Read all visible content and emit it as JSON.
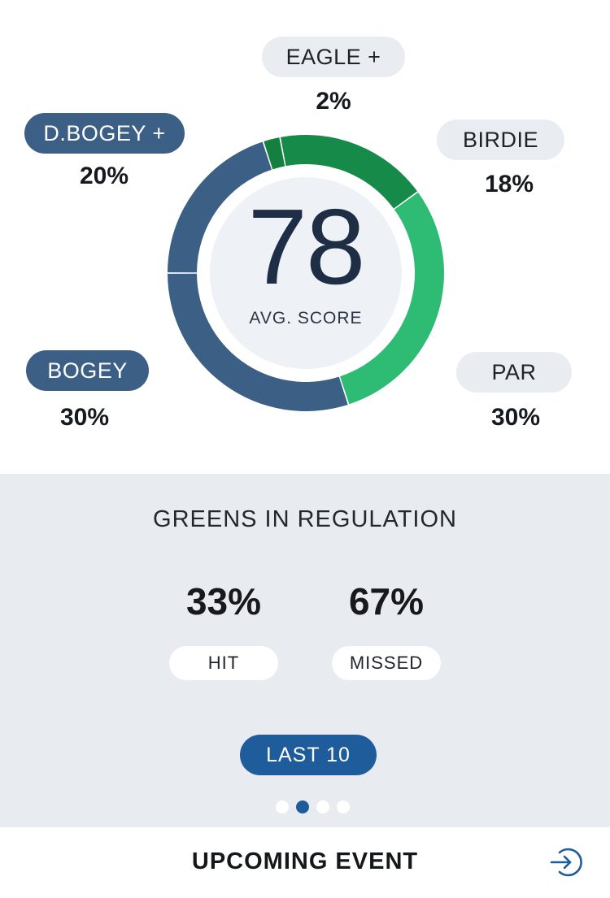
{
  "score_distribution": {
    "average_score": "78",
    "average_label": "AVG. SCORE",
    "categories": [
      {
        "key": "eagle",
        "label": "EAGLE +",
        "percent_text": "2%",
        "value": 2,
        "color": "#13803f"
      },
      {
        "key": "birdie",
        "label": "BIRDIE",
        "percent_text": "18%",
        "value": 18,
        "color": "#168a48"
      },
      {
        "key": "par",
        "label": "PAR",
        "percent_text": "30%",
        "value": 30,
        "color": "#2ebc74"
      },
      {
        "key": "bogey",
        "label": "BOGEY",
        "percent_text": "30%",
        "value": 30,
        "color": "#3c5f86"
      },
      {
        "key": "double_bogey",
        "label": "D.BOGEY +",
        "percent_text": "20%",
        "value": 20,
        "color": "#3c5f86"
      }
    ]
  },
  "greens_in_regulation": {
    "title": "GREENS IN REGULATION",
    "hit": {
      "percent_text": "33%",
      "label": "HIT"
    },
    "missed": {
      "percent_text": "67%",
      "label": "MISSED"
    }
  },
  "filter": {
    "label": "LAST 10"
  },
  "pager": {
    "count": 4,
    "active_index": 1
  },
  "footer": {
    "label": "UPCOMING EVENT",
    "icon": "enter-arrow-icon"
  },
  "colors": {
    "accent": "#1f5c9c",
    "dark_blue": "#3c5f86",
    "panel_bg": "#e8ebf0"
  }
}
